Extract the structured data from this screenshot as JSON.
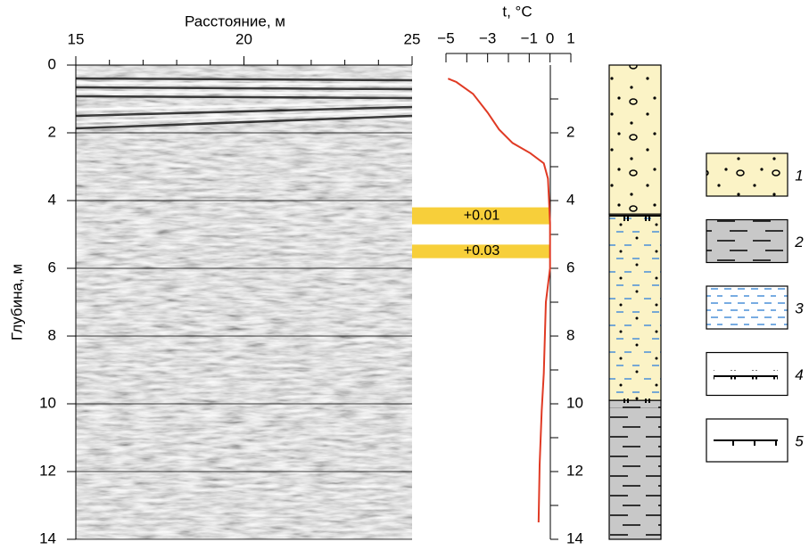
{
  "chart_data": [
    {
      "type": "radargram",
      "xlabel": "Расстояние, м",
      "ylabel": "Глубина, м",
      "xlim": [
        15,
        25
      ],
      "xticks": [
        15,
        20,
        25
      ],
      "minor_xticks": [
        16,
        17,
        18,
        19,
        21,
        22,
        23,
        24
      ],
      "ylim": [
        0,
        14
      ],
      "inverted": true,
      "yticks": [
        0,
        2,
        4,
        6,
        8,
        10,
        12,
        14
      ],
      "grid": true
    },
    {
      "type": "line",
      "xlabel": "t, °C",
      "xlim": [
        -5,
        1
      ],
      "xticks": [
        {
          "value": -5,
          "label": "−5"
        },
        {
          "value": -3,
          "label": "−3"
        },
        {
          "value": -1,
          "label": "−1"
        },
        0,
        1
      ],
      "minor_xticks": [
        -4,
        -2
      ],
      "ylim": [
        0,
        14
      ],
      "inverted": true,
      "yticks": [
        2,
        4,
        6,
        8,
        10,
        12,
        14
      ],
      "minor_yticks": [
        1,
        3,
        5,
        7,
        9,
        11,
        13
      ],
      "color": "#e03a24",
      "x": [
        -4.9,
        -4.5,
        -3.7,
        -3.0,
        -2.45,
        -1.8,
        -0.95,
        -0.3,
        -0.1,
        0,
        0,
        -0.2,
        -0.3,
        -0.4,
        -0.5,
        -0.55
      ],
      "values": [
        0.4,
        0.5,
        0.85,
        1.4,
        1.9,
        2.3,
        2.6,
        2.9,
        3.35,
        4.65,
        6.0,
        7.0,
        9.1,
        10.2,
        11.8,
        13.5
      ],
      "band_color": "#f7cf3a",
      "annotations": [
        {
          "text": "+0.01",
          "y0": 4.2,
          "y1": 4.7
        },
        {
          "text": "+0.03",
          "y0": 5.3,
          "y1": 5.7
        }
      ]
    },
    {
      "type": "column",
      "ylim": [
        0,
        14
      ],
      "layers": [
        {
          "top": 0,
          "bottom": 4.4,
          "legend_item": 0
        },
        {
          "top": 4.4,
          "bottom": 9.9,
          "legend_item": 2
        },
        {
          "top": 9.9,
          "bottom": 14,
          "legend_item": 1
        }
      ],
      "boundaries": [
        {
          "depth": 4.4,
          "legend_item": 3
        },
        {
          "depth": 9.9,
          "legend_item": 3
        }
      ]
    },
    {
      "type": "legend",
      "items": [
        "1",
        "2",
        "3",
        "4",
        "5"
      ]
    }
  ]
}
